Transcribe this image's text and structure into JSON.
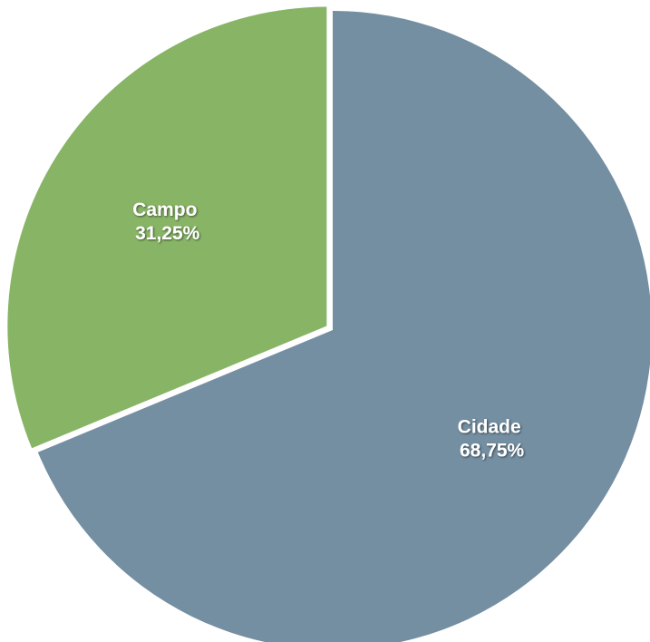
{
  "chart_data": {
    "type": "pie",
    "slices": [
      {
        "label": "Cidade",
        "value": 68.75,
        "value_label": "68,75%",
        "color": "#748fa2"
      },
      {
        "label": "Campo",
        "value": 31.25,
        "value_label": "31,25%",
        "color": "#88b466"
      }
    ],
    "title": "",
    "legend": "none",
    "exploded_slice": "Campo"
  }
}
